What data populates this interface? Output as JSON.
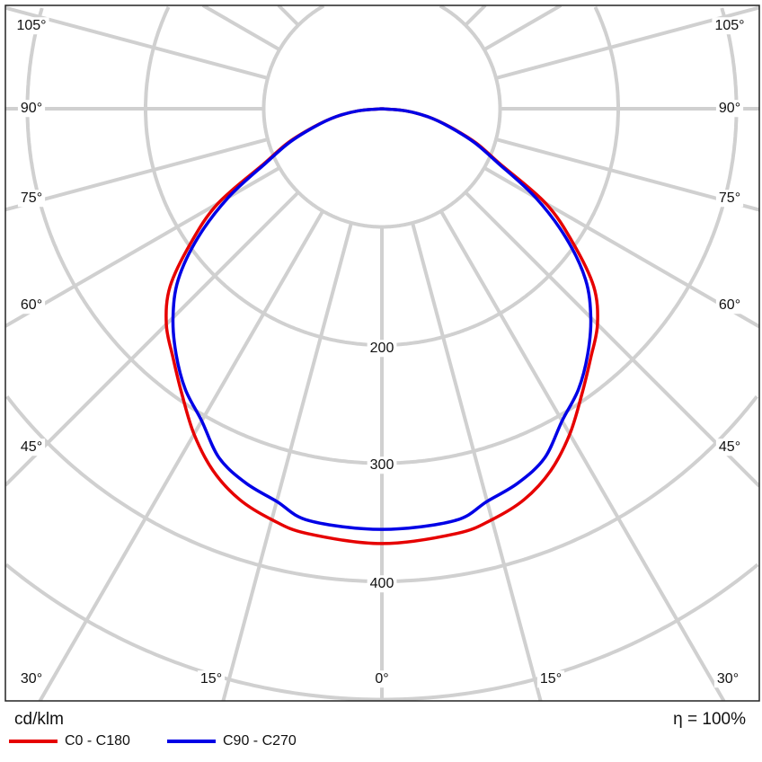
{
  "chart_data": {
    "type": "polar-line",
    "unit_label": "cd/klm",
    "efficiency_label": "η = 100%",
    "radial_ticks": [
      100,
      200,
      300,
      400,
      500,
      600
    ],
    "radial_tick_labels": [
      "200",
      "300",
      "400"
    ],
    "angle_step_deg": 15,
    "angle_labels_left": [
      "105°",
      "90°",
      "75°",
      "60°",
      "45°"
    ],
    "angle_labels_right": [
      "105°",
      "90°",
      "75°",
      "60°",
      "45°"
    ],
    "angle_labels_bottom": [
      "30°",
      "15°",
      "0°",
      "15°",
      "30°"
    ],
    "gamma_deg": [
      0,
      10,
      15,
      20,
      25,
      30,
      35,
      40,
      45,
      50,
      55,
      60,
      65,
      70,
      75,
      80,
      85,
      90
    ],
    "series": [
      {
        "name": "C0 - C180",
        "color": "#e60000",
        "values": [
          368,
          365,
          360,
          352,
          338,
          318,
          295,
          275,
          258,
          234,
          197,
          160,
          110,
          85,
          60,
          40,
          20,
          0
        ]
      },
      {
        "name": "C90 - C270",
        "color": "#0000e6",
        "values": [
          356,
          354,
          344,
          337,
          326,
          305,
          290,
          271,
          250,
          225,
          190,
          150,
          108,
          83,
          59,
          40,
          20,
          0
        ]
      }
    ],
    "grid": true,
    "legend_placement": "bottom-left"
  }
}
